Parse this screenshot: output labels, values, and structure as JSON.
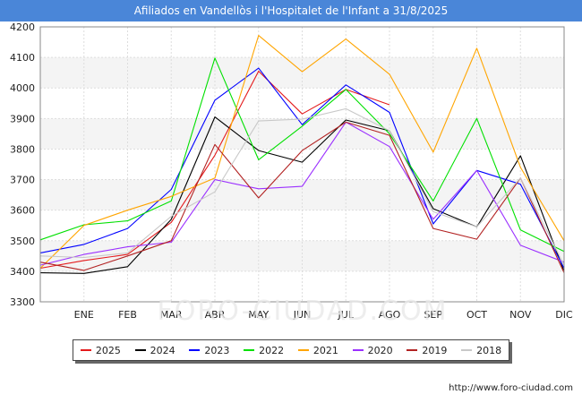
{
  "header": {
    "title": "Afiliados en Vandellòs i l'Hospitalet de l'Infant a 31/8/2025"
  },
  "footer": {
    "url": "http://www.foro-ciudad.com"
  },
  "chart_data": {
    "type": "line",
    "title": "Afiliados en Vandellòs i l'Hospitalet de l'Infant a 31/8/2025",
    "xlabel": "",
    "ylabel": "",
    "categories": [
      "",
      "ENE",
      "FEB",
      "MAR",
      "ABR",
      "MAY",
      "JUN",
      "JUL",
      "AGO",
      "SEP",
      "OCT",
      "NOV",
      "DIC"
    ],
    "ylim": [
      3300,
      4200
    ],
    "yticks": [
      3300,
      3400,
      3500,
      3600,
      3700,
      3800,
      3900,
      4000,
      4100,
      4200
    ],
    "grid": true,
    "legend_position": "bottom",
    "series": [
      {
        "name": "2025",
        "color": "#e41a1c",
        "values": [
          3410,
          3435,
          3455,
          3560,
          3780,
          4055,
          3915,
          3995,
          3945,
          null,
          null,
          null,
          null
        ]
      },
      {
        "name": "2024",
        "color": "#000000",
        "values": [
          3395,
          3393,
          3415,
          3570,
          3905,
          3795,
          3757,
          3895,
          3860,
          3605,
          3545,
          3778,
          3400
        ]
      },
      {
        "name": "2023",
        "color": "#0000ff",
        "values": [
          3460,
          3488,
          3540,
          3668,
          3960,
          4065,
          3880,
          4010,
          3920,
          3555,
          3730,
          3685,
          3410
        ]
      },
      {
        "name": "2022",
        "color": "#00e000",
        "values": [
          3503,
          3552,
          3565,
          3630,
          4098,
          3765,
          3875,
          3995,
          3850,
          3630,
          3900,
          3535,
          3465
        ]
      },
      {
        "name": "2021",
        "color": "#ffa500",
        "values": [
          3410,
          3550,
          3600,
          3645,
          3705,
          4172,
          4053,
          4160,
          4045,
          3790,
          4130,
          3740,
          3500
        ]
      },
      {
        "name": "2020",
        "color": "#9b30ff",
        "values": [
          3420,
          3455,
          3480,
          3495,
          3700,
          3670,
          3678,
          3888,
          3808,
          3570,
          3730,
          3485,
          3430
        ]
      },
      {
        "name": "2019",
        "color": "#b22222",
        "values": [
          3430,
          3403,
          3450,
          3500,
          3815,
          3640,
          3795,
          3888,
          3845,
          3540,
          3505,
          3705,
          3395
        ]
      },
      {
        "name": "2018",
        "color": "#c8c8c8",
        "values": [
          3450,
          3445,
          3460,
          3580,
          3660,
          3892,
          3898,
          3932,
          3860,
          3595,
          3545,
          3705,
          3420
        ]
      }
    ]
  }
}
